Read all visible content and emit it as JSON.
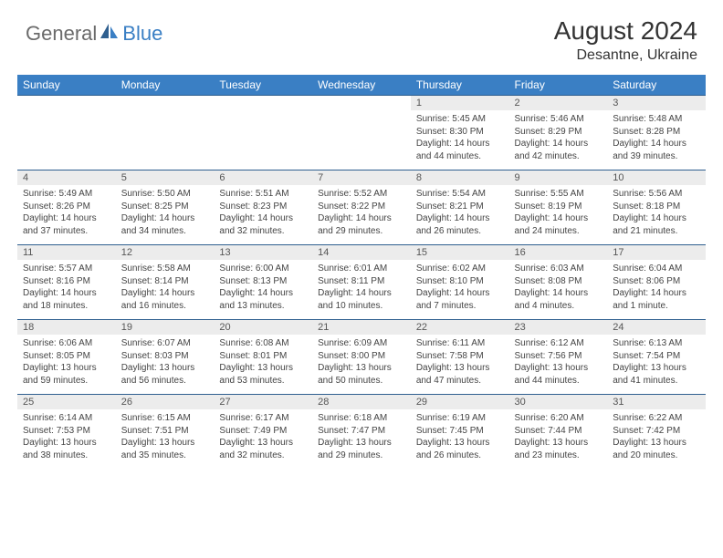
{
  "logo": {
    "general": "General",
    "blue": "Blue"
  },
  "title": "August 2024",
  "location": "Desantne, Ukraine",
  "colors": {
    "header_bg": "#3a7fc4",
    "header_text": "#ffffff",
    "daynum_bg": "#ececec",
    "border": "#2f5f8f",
    "body_text": "#444444"
  },
  "day_headers": [
    "Sunday",
    "Monday",
    "Tuesday",
    "Wednesday",
    "Thursday",
    "Friday",
    "Saturday"
  ],
  "weeks": [
    [
      {
        "n": "",
        "sr": "",
        "ss": "",
        "dl": ""
      },
      {
        "n": "",
        "sr": "",
        "ss": "",
        "dl": ""
      },
      {
        "n": "",
        "sr": "",
        "ss": "",
        "dl": ""
      },
      {
        "n": "",
        "sr": "",
        "ss": "",
        "dl": ""
      },
      {
        "n": "1",
        "sr": "Sunrise: 5:45 AM",
        "ss": "Sunset: 8:30 PM",
        "dl": "Daylight: 14 hours and 44 minutes."
      },
      {
        "n": "2",
        "sr": "Sunrise: 5:46 AM",
        "ss": "Sunset: 8:29 PM",
        "dl": "Daylight: 14 hours and 42 minutes."
      },
      {
        "n": "3",
        "sr": "Sunrise: 5:48 AM",
        "ss": "Sunset: 8:28 PM",
        "dl": "Daylight: 14 hours and 39 minutes."
      }
    ],
    [
      {
        "n": "4",
        "sr": "Sunrise: 5:49 AM",
        "ss": "Sunset: 8:26 PM",
        "dl": "Daylight: 14 hours and 37 minutes."
      },
      {
        "n": "5",
        "sr": "Sunrise: 5:50 AM",
        "ss": "Sunset: 8:25 PM",
        "dl": "Daylight: 14 hours and 34 minutes."
      },
      {
        "n": "6",
        "sr": "Sunrise: 5:51 AM",
        "ss": "Sunset: 8:23 PM",
        "dl": "Daylight: 14 hours and 32 minutes."
      },
      {
        "n": "7",
        "sr": "Sunrise: 5:52 AM",
        "ss": "Sunset: 8:22 PM",
        "dl": "Daylight: 14 hours and 29 minutes."
      },
      {
        "n": "8",
        "sr": "Sunrise: 5:54 AM",
        "ss": "Sunset: 8:21 PM",
        "dl": "Daylight: 14 hours and 26 minutes."
      },
      {
        "n": "9",
        "sr": "Sunrise: 5:55 AM",
        "ss": "Sunset: 8:19 PM",
        "dl": "Daylight: 14 hours and 24 minutes."
      },
      {
        "n": "10",
        "sr": "Sunrise: 5:56 AM",
        "ss": "Sunset: 8:18 PM",
        "dl": "Daylight: 14 hours and 21 minutes."
      }
    ],
    [
      {
        "n": "11",
        "sr": "Sunrise: 5:57 AM",
        "ss": "Sunset: 8:16 PM",
        "dl": "Daylight: 14 hours and 18 minutes."
      },
      {
        "n": "12",
        "sr": "Sunrise: 5:58 AM",
        "ss": "Sunset: 8:14 PM",
        "dl": "Daylight: 14 hours and 16 minutes."
      },
      {
        "n": "13",
        "sr": "Sunrise: 6:00 AM",
        "ss": "Sunset: 8:13 PM",
        "dl": "Daylight: 14 hours and 13 minutes."
      },
      {
        "n": "14",
        "sr": "Sunrise: 6:01 AM",
        "ss": "Sunset: 8:11 PM",
        "dl": "Daylight: 14 hours and 10 minutes."
      },
      {
        "n": "15",
        "sr": "Sunrise: 6:02 AM",
        "ss": "Sunset: 8:10 PM",
        "dl": "Daylight: 14 hours and 7 minutes."
      },
      {
        "n": "16",
        "sr": "Sunrise: 6:03 AM",
        "ss": "Sunset: 8:08 PM",
        "dl": "Daylight: 14 hours and 4 minutes."
      },
      {
        "n": "17",
        "sr": "Sunrise: 6:04 AM",
        "ss": "Sunset: 8:06 PM",
        "dl": "Daylight: 14 hours and 1 minute."
      }
    ],
    [
      {
        "n": "18",
        "sr": "Sunrise: 6:06 AM",
        "ss": "Sunset: 8:05 PM",
        "dl": "Daylight: 13 hours and 59 minutes."
      },
      {
        "n": "19",
        "sr": "Sunrise: 6:07 AM",
        "ss": "Sunset: 8:03 PM",
        "dl": "Daylight: 13 hours and 56 minutes."
      },
      {
        "n": "20",
        "sr": "Sunrise: 6:08 AM",
        "ss": "Sunset: 8:01 PM",
        "dl": "Daylight: 13 hours and 53 minutes."
      },
      {
        "n": "21",
        "sr": "Sunrise: 6:09 AM",
        "ss": "Sunset: 8:00 PM",
        "dl": "Daylight: 13 hours and 50 minutes."
      },
      {
        "n": "22",
        "sr": "Sunrise: 6:11 AM",
        "ss": "Sunset: 7:58 PM",
        "dl": "Daylight: 13 hours and 47 minutes."
      },
      {
        "n": "23",
        "sr": "Sunrise: 6:12 AM",
        "ss": "Sunset: 7:56 PM",
        "dl": "Daylight: 13 hours and 44 minutes."
      },
      {
        "n": "24",
        "sr": "Sunrise: 6:13 AM",
        "ss": "Sunset: 7:54 PM",
        "dl": "Daylight: 13 hours and 41 minutes."
      }
    ],
    [
      {
        "n": "25",
        "sr": "Sunrise: 6:14 AM",
        "ss": "Sunset: 7:53 PM",
        "dl": "Daylight: 13 hours and 38 minutes."
      },
      {
        "n": "26",
        "sr": "Sunrise: 6:15 AM",
        "ss": "Sunset: 7:51 PM",
        "dl": "Daylight: 13 hours and 35 minutes."
      },
      {
        "n": "27",
        "sr": "Sunrise: 6:17 AM",
        "ss": "Sunset: 7:49 PM",
        "dl": "Daylight: 13 hours and 32 minutes."
      },
      {
        "n": "28",
        "sr": "Sunrise: 6:18 AM",
        "ss": "Sunset: 7:47 PM",
        "dl": "Daylight: 13 hours and 29 minutes."
      },
      {
        "n": "29",
        "sr": "Sunrise: 6:19 AM",
        "ss": "Sunset: 7:45 PM",
        "dl": "Daylight: 13 hours and 26 minutes."
      },
      {
        "n": "30",
        "sr": "Sunrise: 6:20 AM",
        "ss": "Sunset: 7:44 PM",
        "dl": "Daylight: 13 hours and 23 minutes."
      },
      {
        "n": "31",
        "sr": "Sunrise: 6:22 AM",
        "ss": "Sunset: 7:42 PM",
        "dl": "Daylight: 13 hours and 20 minutes."
      }
    ]
  ]
}
